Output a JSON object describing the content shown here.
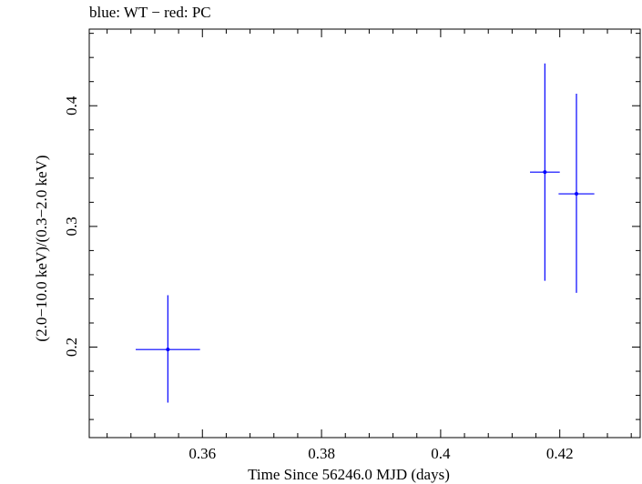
{
  "chart_data": {
    "type": "scatter",
    "title": "blue: WT − red: PC",
    "xlabel": "Time Since 56246.0 MJD (days)",
    "ylabel": "(2.0−10.0 keV)/(0.3−2.0 keV)",
    "xlim": [
      0.341,
      0.4335
    ],
    "ylim": [
      0.125,
      0.4635
    ],
    "x_ticks": [
      0.36,
      0.38,
      0.4,
      0.42
    ],
    "x_tick_labels": [
      "0.36",
      "0.38",
      "0.4",
      "0.42"
    ],
    "y_ticks": [
      0.2,
      0.3,
      0.4
    ],
    "y_tick_labels": [
      "0.2",
      "0.3",
      "0.4"
    ],
    "grid": false,
    "series": [
      {
        "color": "#0000ff",
        "points": [
          {
            "x": 0.3542,
            "y": 0.198,
            "xerr_low": 0.0054,
            "xerr_high": 0.0054,
            "yerr_low": 0.044,
            "yerr_high": 0.045
          },
          {
            "x": 0.4175,
            "y": 0.345,
            "xerr_low": 0.0025,
            "xerr_high": 0.0025,
            "yerr_low": 0.09,
            "yerr_high": 0.09
          },
          {
            "x": 0.4228,
            "y": 0.327,
            "xerr_low": 0.003,
            "xerr_high": 0.003,
            "yerr_low": 0.082,
            "yerr_high": 0.083
          }
        ]
      }
    ]
  }
}
